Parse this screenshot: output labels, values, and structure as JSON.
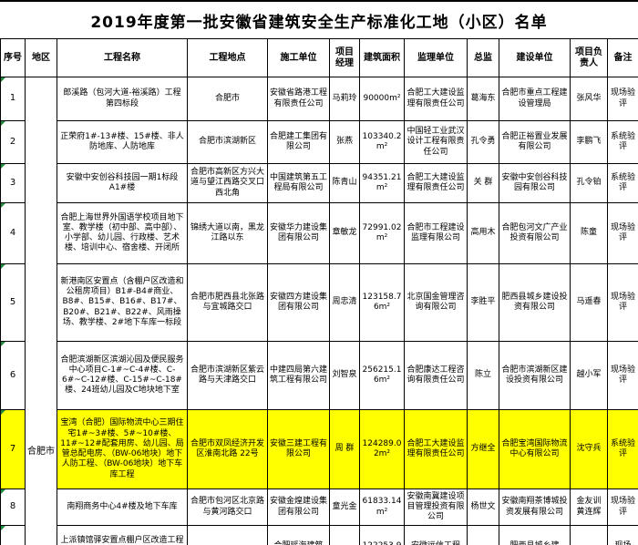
{
  "title": "2019年度第一批安徽省建筑安全生产标准化工地（小区）名单",
  "columns": [
    "序号",
    "地区",
    "工程名称",
    "工程地点",
    "施工单位",
    "项目经理",
    "建筑面积",
    "监理单位",
    "总监",
    "建设单位",
    "项目负责人",
    "备注"
  ],
  "region": "合肥市",
  "colors": {
    "highlight": "#ffff00",
    "corner_marker": "#1f8a3b"
  },
  "rows": [
    {
      "no": "1",
      "name": "郎溪路（包河大道-裕溪路）工程第四标段",
      "location": "合肥市",
      "builder": "安徽省路港工程有限责任公司",
      "manager": "马莉玲",
      "area": "90000m²",
      "supervisor_unit": "合肥工大建设监理有限责任公司",
      "chief": "葛海东",
      "owner": "合肥市重点工程建设管理局",
      "leader": "张风华",
      "remark": "现场验评",
      "highlight": false
    },
    {
      "no": "2",
      "name": "正荣府1#-13#楼、15#楼、非人防地库、人防地库",
      "location": "合肥市滨湖新区",
      "builder": "合肥建工集团有限公司",
      "manager": "张燕",
      "area": "103340.2m²",
      "supervisor_unit": "中国轻工业武汉设计工程有限责任公司",
      "chief": "孔令勇",
      "owner": "合肥正裕置业发展有限公司",
      "leader": "李鹏飞",
      "remark": "系统验评",
      "highlight": false
    },
    {
      "no": "3",
      "name": "安徽中安创谷科技园一期1标段A1#楼",
      "location": "合肥市高新区方兴大道与望江西路交叉口西北角",
      "builder": "中国建筑第五工程局有限公司",
      "manager": "陈青山",
      "area": "94351.21m²",
      "supervisor_unit": "合肥工大建设监理有限责任公司",
      "chief": "关  群",
      "owner": "安徽中安创谷科技园有限公司",
      "leader": "孔令铂",
      "remark": "系统验评",
      "highlight": false
    },
    {
      "no": "4",
      "name": "合肥上海世界外国语学校项目地下室、教学楼（初中部、高中部）、小学部、幼儿园、行政楼、艺术楼、培训中心、宿舍楼、开闭所",
      "location": "锦绣大道以南，黑龙江路以东",
      "builder": "安徽华力建设集团有限公司",
      "manager": "章敏龙",
      "area": "72991.02m²",
      "supervisor_unit": "合肥市工程建设监理有限公司",
      "chief": "高用木",
      "owner": "合肥包河文广产业投资有限公司",
      "leader": "陈童",
      "remark": "现场验评",
      "highlight": false
    },
    {
      "no": "5",
      "name": "新港南区安置点（含棚户区改造和公租房项目）B1#-B4#商业、B8#、B15#、B16#、B17#、B20#、B21#、B22#、风雨操场、教学楼、2#地下车库一标段",
      "location": "合肥市肥西县北张路与宜城路交口",
      "builder": "安徽四方建设集团有限公司",
      "manager": "周忠清",
      "area": "123158.76m²",
      "supervisor_unit": "北京国金管理咨询有限公司",
      "chief": "李胜平",
      "owner": "肥西县城乡建设投资有限公司",
      "leader": "马遥春",
      "remark": "现场验评",
      "highlight": false
    },
    {
      "no": "6",
      "name": "合肥滨湖新区滨湖沁园及便民服务中心项目C-1#~C-4#楼、C-6#~C-12#楼、C-15#~C-18#楼、24班幼儿园及C地块地下室",
      "location": "合肥市滨湖新区紫云路与天津路交口",
      "builder": "中建四局第六建筑工程有限公司",
      "manager": "刘智泉",
      "area": "256215.16m²",
      "supervisor_unit": "合肥康达工程咨询有限责任公司",
      "chief": "陈立",
      "owner": "合肥市滨湖新区建设投资有限公司",
      "leader": "越小军",
      "remark": "现场验评",
      "highlight": false
    },
    {
      "no": "7",
      "name": "宝湾（合肥）国际物流中心三期住宅1#~3#楼、5#~10#楼、11#~12#配套用房、幼儿园、局管总配电房、（BW-06地块）地下人防工程、（BW-06地块）地下车库工程",
      "location": "合肥市双凤经济开发区淮南北路 22号",
      "builder": "安徽三建工程有限公司",
      "manager": "周  群",
      "area": "124289.02m²",
      "supervisor_unit": "合肥工大建设监理有限责任公司",
      "chief": "方继全",
      "owner": "合肥宝湾国际物流中心有限公司",
      "leader": "沈守兵",
      "remark": "系统验评",
      "highlight": true
    },
    {
      "no": "8",
      "name": "南翔商务中心4#楼及地下车库",
      "location": "合肥市包河区北京路与黄河路交口",
      "builder": "安徽金煌建设集团有限公司",
      "manager": "童光金",
      "area": "61833.14m²",
      "supervisor_unit": "安徽南冀建设项目管理投资有限公司",
      "chief": "杨世文",
      "owner": "安徽南翔茶博城投资发展有限公司",
      "leader": "金友训 黄连辉",
      "remark": "现场验评",
      "highlight": false
    },
    {
      "no": "",
      "name": "上派镇馆驿安置点棚户区改造工程1标段（A-1#楼 A-8#楼",
      "location": "",
      "builder": "合肥瑶海建筑",
      "manager": "",
      "area": "122253.9",
      "supervisor_unit": "安徽远信工程",
      "chief": "",
      "owner": "肥西县城乡建",
      "leader": "",
      "remark": "现场",
      "highlight": false
    }
  ]
}
